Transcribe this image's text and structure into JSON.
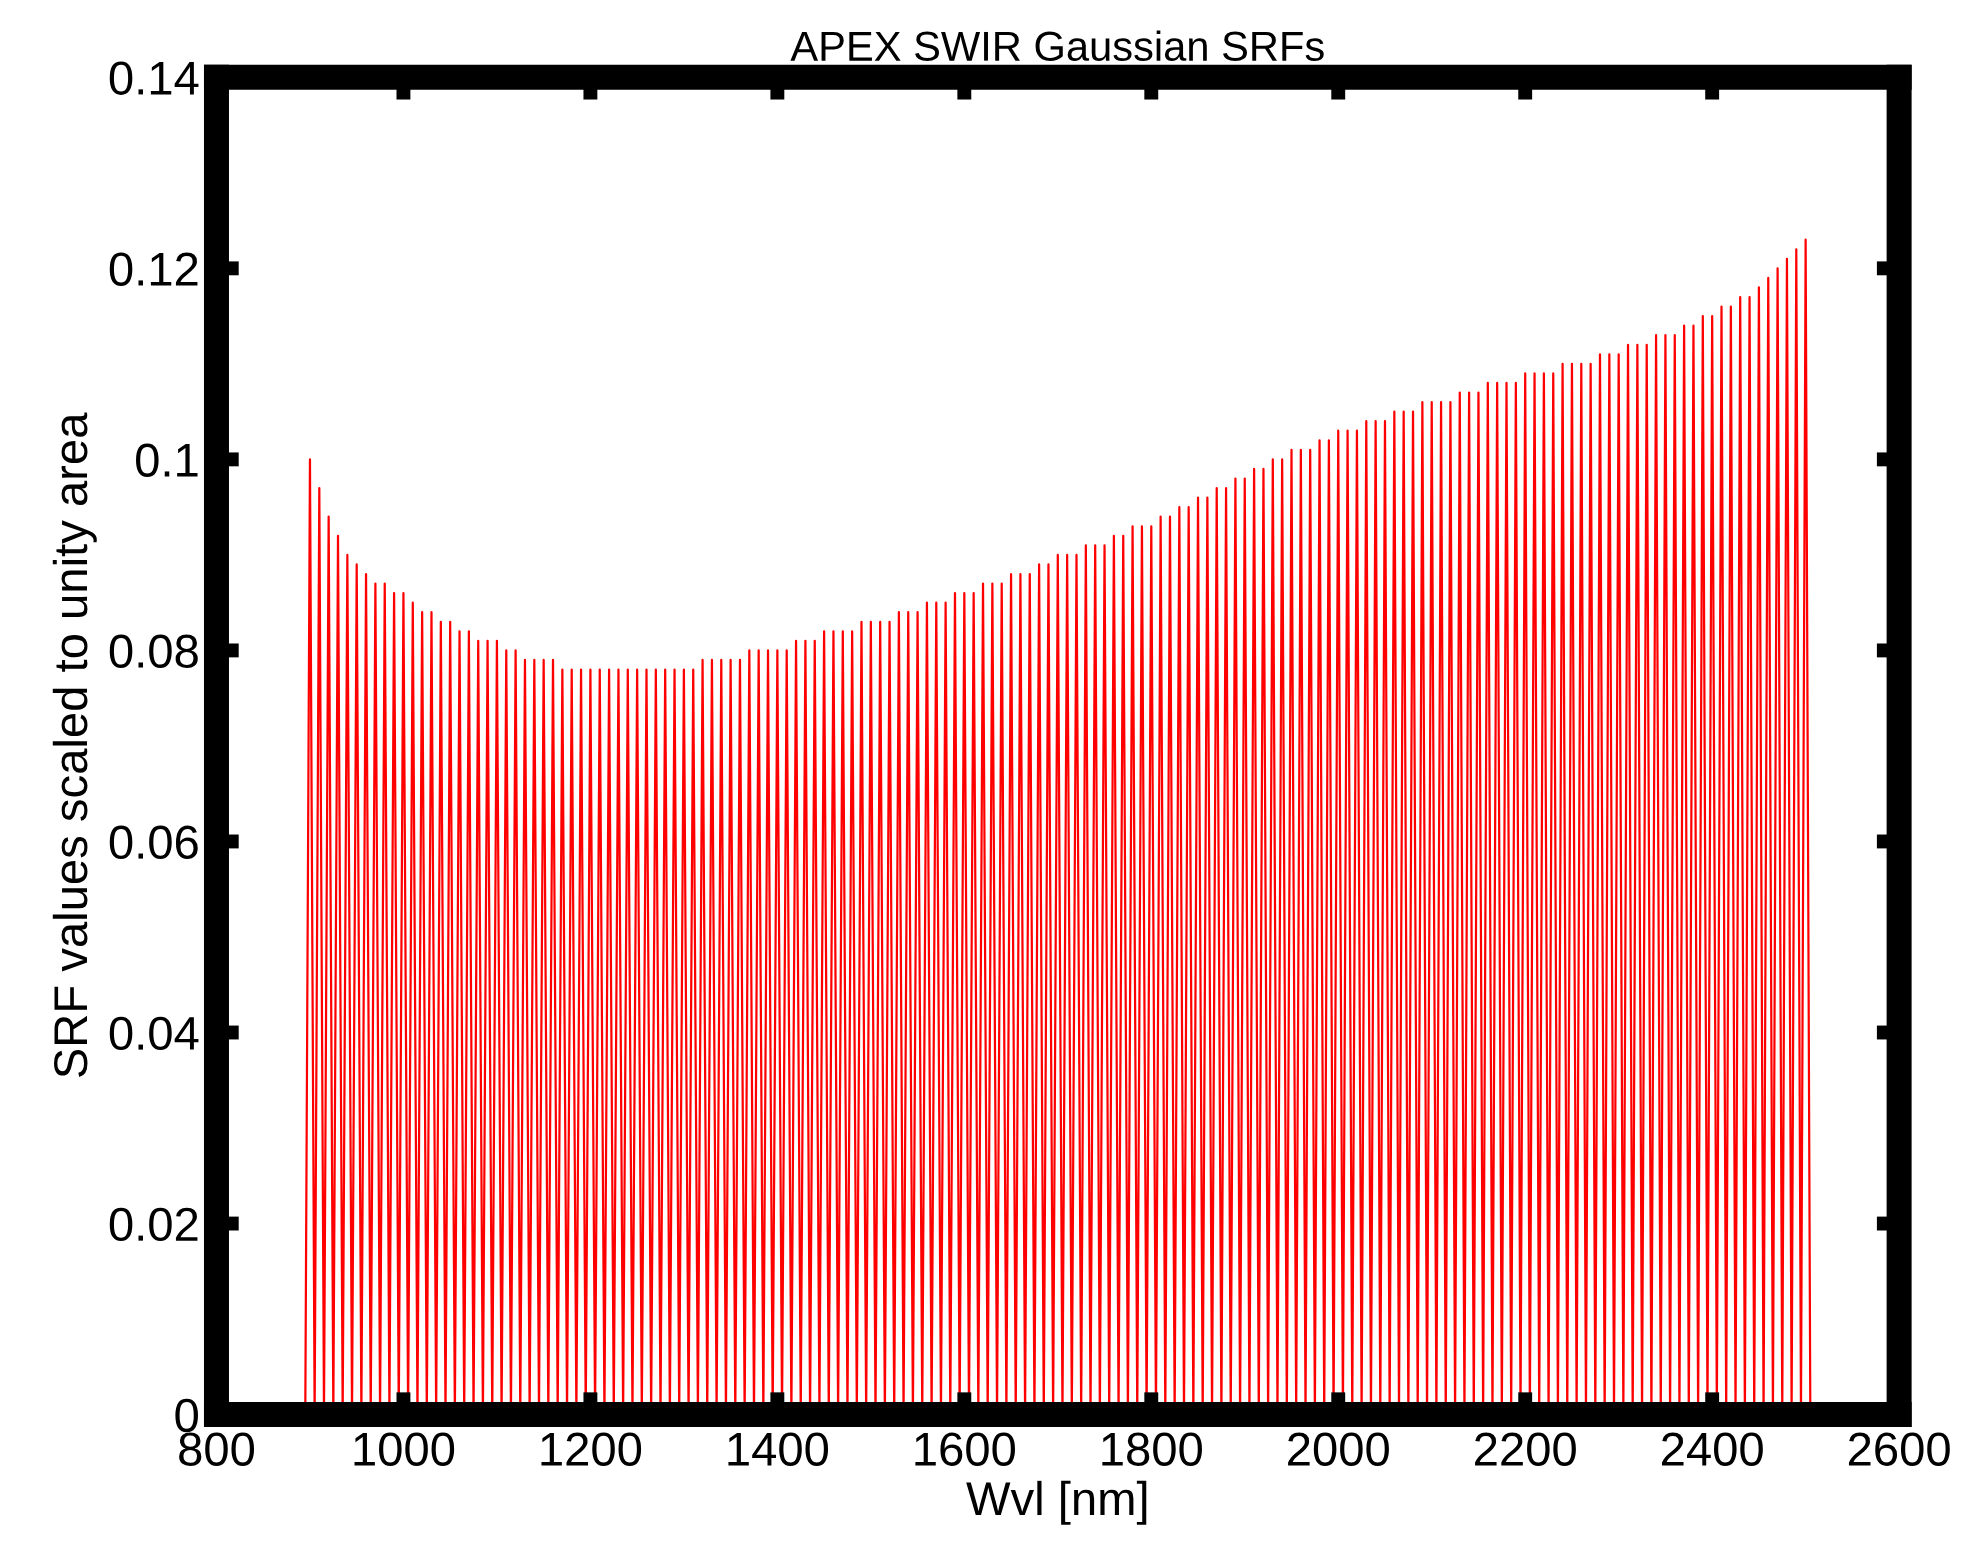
{
  "chart_data": {
    "type": "line",
    "title": "APEX SWIR Gaussian SRFs",
    "xlabel": "Wvl [nm]",
    "ylabel": "SRF values scaled to unity area",
    "marker": "none",
    "xlim": [
      800,
      2600
    ],
    "xticks": [
      800,
      1000,
      1200,
      1400,
      1600,
      1800,
      2000,
      2200,
      2400,
      2600
    ],
    "ylim": [
      0,
      0.14
    ],
    "yticks": [
      0,
      0.02,
      0.04,
      0.06,
      0.08,
      {
        "value": 0.1,
        "label": "0.1"
      },
      0.12,
      0.14
    ],
    "series": [
      {
        "color": "#ff0000",
        "x": [
          895,
          900,
          905,
          910,
          915,
          920,
          925,
          930,
          935,
          940,
          945,
          950,
          955,
          960,
          965,
          970,
          975,
          980,
          985,
          990,
          995,
          1000,
          1005,
          1010,
          1015,
          1020,
          1025,
          1030,
          1035,
          1040,
          1045,
          1050,
          1055,
          1060,
          1065,
          1070,
          1075,
          1080,
          1085,
          1090,
          1095,
          1100,
          1105,
          1110,
          1115,
          1120,
          1125,
          1130,
          1135,
          1140,
          1145,
          1150,
          1155,
          1160,
          1165,
          1170,
          1175,
          1180,
          1185,
          1190,
          1195,
          1200,
          1205,
          1210,
          1215,
          1220,
          1225,
          1230,
          1235,
          1240,
          1245,
          1250,
          1255,
          1260,
          1265,
          1270,
          1275,
          1280,
          1285,
          1290,
          1295,
          1300,
          1305,
          1310,
          1315,
          1320,
          1325,
          1330,
          1335,
          1340,
          1345,
          1350,
          1355,
          1360,
          1365,
          1370,
          1375,
          1380,
          1385,
          1390,
          1395,
          1400,
          1405,
          1410,
          1415,
          1420,
          1425,
          1430,
          1435,
          1440,
          1445,
          1450,
          1455,
          1460,
          1465,
          1470,
          1475,
          1480,
          1485,
          1490,
          1495,
          1500,
          1505,
          1510,
          1515,
          1520,
          1525,
          1530,
          1535,
          1540,
          1545,
          1550,
          1555,
          1560,
          1565,
          1570,
          1575,
          1580,
          1585,
          1590,
          1595,
          1600,
          1605,
          1610,
          1615,
          1620,
          1625,
          1630,
          1635,
          1640,
          1645,
          1650,
          1655,
          1660,
          1665,
          1670,
          1675,
          1680,
          1685,
          1690,
          1695,
          1700,
          1705,
          1710,
          1715,
          1720,
          1725,
          1730,
          1735,
          1740,
          1745,
          1750,
          1755,
          1760,
          1765,
          1770,
          1775,
          1780,
          1785,
          1790,
          1795,
          1800,
          1805,
          1810,
          1815,
          1820,
          1825,
          1830,
          1835,
          1840,
          1845,
          1850,
          1855,
          1860,
          1865,
          1870,
          1875,
          1880,
          1885,
          1890,
          1895,
          1900,
          1905,
          1910,
          1915,
          1920,
          1925,
          1930,
          1935,
          1940,
          1945,
          1950,
          1955,
          1960,
          1965,
          1970,
          1975,
          1980,
          1985,
          1990,
          1995,
          2000,
          2005,
          2010,
          2015,
          2020,
          2025,
          2030,
          2035,
          2040,
          2045,
          2050,
          2055,
          2060,
          2065,
          2070,
          2075,
          2080,
          2085,
          2090,
          2095,
          2100,
          2105,
          2110,
          2115,
          2120,
          2125,
          2130,
          2135,
          2140,
          2145,
          2150,
          2155,
          2160,
          2165,
          2170,
          2175,
          2180,
          2185,
          2190,
          2195,
          2200,
          2205,
          2210,
          2215,
          2220,
          2225,
          2230,
          2235,
          2240,
          2245,
          2250,
          2255,
          2260,
          2265,
          2270,
          2275,
          2280,
          2285,
          2290,
          2295,
          2300,
          2305,
          2310,
          2315,
          2320,
          2325,
          2330,
          2335,
          2340,
          2345,
          2350,
          2355,
          2360,
          2365,
          2370,
          2375,
          2380,
          2385,
          2390,
          2395,
          2400,
          2405,
          2410,
          2415,
          2420,
          2425,
          2430,
          2435,
          2440,
          2445,
          2450,
          2455,
          2460,
          2465,
          2470,
          2475,
          2480,
          2485,
          2490,
          2495,
          2500,
          2505
        ],
        "values": [
          0,
          0.1,
          0,
          0.097,
          0,
          0.094,
          0,
          0.092,
          0,
          0.09,
          0,
          0.089,
          0,
          0.088,
          0,
          0.087,
          0,
          0.087,
          0,
          0.086,
          0,
          0.086,
          0,
          0.085,
          0,
          0.084,
          0,
          0.084,
          0,
          0.083,
          0,
          0.083,
          0,
          0.082,
          0,
          0.082,
          0,
          0.081,
          0,
          0.081,
          0,
          0.081,
          0,
          0.08,
          0,
          0.08,
          0,
          0.079,
          0,
          0.079,
          0,
          0.079,
          0,
          0.079,
          0,
          0.078,
          0,
          0.078,
          0,
          0.078,
          0,
          0.078,
          0,
          0.078,
          0,
          0.078,
          0,
          0.078,
          0,
          0.078,
          0,
          0.078,
          0,
          0.078,
          0,
          0.078,
          0,
          0.078,
          0,
          0.078,
          0,
          0.078,
          0,
          0.078,
          0,
          0.079,
          0,
          0.079,
          0,
          0.079,
          0,
          0.079,
          0,
          0.079,
          0,
          0.08,
          0,
          0.08,
          0,
          0.08,
          0,
          0.08,
          0,
          0.08,
          0,
          0.081,
          0,
          0.081,
          0,
          0.081,
          0,
          0.082,
          0,
          0.082,
          0,
          0.082,
          0,
          0.082,
          0,
          0.083,
          0,
          0.083,
          0,
          0.083,
          0,
          0.083,
          0,
          0.084,
          0,
          0.084,
          0,
          0.084,
          0,
          0.085,
          0,
          0.085,
          0,
          0.085,
          0,
          0.086,
          0,
          0.086,
          0,
          0.086,
          0,
          0.087,
          0,
          0.087,
          0,
          0.087,
          0,
          0.088,
          0,
          0.088,
          0,
          0.088,
          0,
          0.089,
          0,
          0.089,
          0,
          0.09,
          0,
          0.09,
          0,
          0.09,
          0,
          0.091,
          0,
          0.091,
          0,
          0.091,
          0,
          0.092,
          0,
          0.092,
          0,
          0.093,
          0,
          0.093,
          0,
          0.093,
          0,
          0.094,
          0,
          0.094,
          0,
          0.095,
          0,
          0.095,
          0,
          0.096,
          0,
          0.096,
          0,
          0.097,
          0,
          0.097,
          0,
          0.098,
          0,
          0.098,
          0,
          0.099,
          0,
          0.099,
          0,
          0.1,
          0,
          0.1,
          0,
          0.101,
          0,
          0.101,
          0,
          0.101,
          0,
          0.102,
          0,
          0.102,
          0,
          0.103,
          0,
          0.103,
          0,
          0.103,
          0,
          0.104,
          0,
          0.104,
          0,
          0.104,
          0,
          0.105,
          0,
          0.105,
          0,
          0.105,
          0,
          0.106,
          0,
          0.106,
          0,
          0.106,
          0,
          0.106,
          0,
          0.107,
          0,
          0.107,
          0,
          0.107,
          0,
          0.108,
          0,
          0.108,
          0,
          0.108,
          0,
          0.108,
          0,
          0.109,
          0,
          0.109,
          0,
          0.109,
          0,
          0.109,
          0,
          0.11,
          0,
          0.11,
          0,
          0.11,
          0,
          0.11,
          0,
          0.111,
          0,
          0.111,
          0,
          0.111,
          0,
          0.112,
          0,
          0.112,
          0,
          0.112,
          0,
          0.113,
          0,
          0.113,
          0,
          0.113,
          0,
          0.114,
          0,
          0.114,
          0,
          0.115,
          0,
          0.115,
          0,
          0.116,
          0,
          0.116,
          0,
          0.117,
          0,
          0.117,
          0,
          0.118,
          0,
          0.119,
          0,
          0.12,
          0,
          0.121,
          0,
          0.122,
          0,
          0.123,
          0
        ]
      }
    ]
  }
}
